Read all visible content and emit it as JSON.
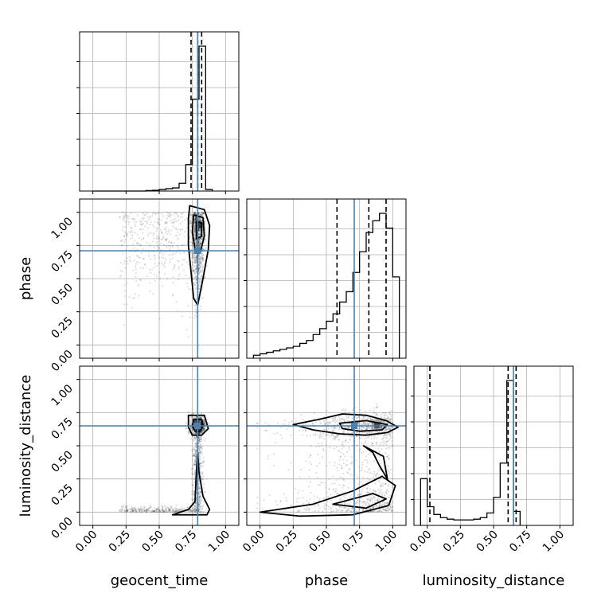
{
  "chart_data": {
    "type": "corner",
    "parameters": [
      "geocent_time",
      "phase",
      "luminosity_distance"
    ],
    "axis_range": [
      -0.1,
      1.1
    ],
    "ticks": [
      0.0,
      0.25,
      0.5,
      0.75,
      1.0
    ],
    "tick_labels": [
      "0.00",
      "0.25",
      "0.50",
      "0.75",
      "1.00"
    ],
    "grid": true,
    "injection_color": "#4682b4",
    "contour_color": "#000000",
    "truths": {
      "geocent_time": 0.79,
      "phase": 0.71,
      "luminosity_distance": 0.65
    },
    "quantile_lines": {
      "geocent_time": [
        0.74,
        0.79,
        0.82
      ],
      "phase": [
        0.58,
        0.82,
        0.95
      ],
      "luminosity_distance": [
        0.02,
        0.61,
        0.67
      ]
    },
    "marginals": {
      "geocent_time": {
        "bin_edges": [
          0.0,
          0.05,
          0.1,
          0.15,
          0.2,
          0.25,
          0.3,
          0.35,
          0.4,
          0.45,
          0.5,
          0.55,
          0.6,
          0.65,
          0.7,
          0.75,
          0.8,
          0.85,
          0.9
        ],
        "counts": [
          0,
          0,
          0,
          0,
          0,
          0,
          0,
          0,
          0.003,
          0.005,
          0.01,
          0.015,
          0.02,
          0.05,
          0.17,
          0.59,
          0.93,
          0.01
        ]
      },
      "phase": {
        "bin_edges": [
          -0.05,
          0.0,
          0.05,
          0.1,
          0.15,
          0.2,
          0.25,
          0.3,
          0.35,
          0.4,
          0.45,
          0.5,
          0.55,
          0.6,
          0.65,
          0.7,
          0.75,
          0.8,
          0.85,
          0.9,
          0.95,
          1.0,
          1.05
        ],
        "counts": [
          0.02,
          0.03,
          0.04,
          0.05,
          0.06,
          0.07,
          0.08,
          0.1,
          0.12,
          0.16,
          0.2,
          0.25,
          0.3,
          0.38,
          0.45,
          0.58,
          0.72,
          0.85,
          0.93,
          0.98,
          0.88,
          0.55
        ]
      },
      "luminosity_distance": {
        "bin_edges": [
          -0.05,
          0.0,
          0.05,
          0.1,
          0.15,
          0.2,
          0.25,
          0.3,
          0.35,
          0.4,
          0.45,
          0.5,
          0.55,
          0.6,
          0.65,
          0.7
        ],
        "counts": [
          0.3,
          0.12,
          0.07,
          0.05,
          0.04,
          0.035,
          0.035,
          0.035,
          0.04,
          0.05,
          0.08,
          0.18,
          0.4,
          0.93,
          0.09
        ]
      }
    },
    "pairs": [
      {
        "x": "geocent_time",
        "y": "phase",
        "contours": [
          [
            [
              0.73,
              1.05
            ],
            [
              0.84,
              1.02
            ],
            [
              0.88,
              0.9
            ],
            [
              0.87,
              0.72
            ],
            [
              0.83,
              0.5
            ],
            [
              0.79,
              0.3
            ],
            [
              0.76,
              0.35
            ],
            [
              0.74,
              0.55
            ],
            [
              0.72,
              0.75
            ],
            [
              0.72,
              0.95
            ]
          ],
          [
            [
              0.76,
              0.98
            ],
            [
              0.83,
              0.96
            ],
            [
              0.84,
              0.82
            ],
            [
              0.81,
              0.7
            ],
            [
              0.77,
              0.72
            ],
            [
              0.75,
              0.85
            ]
          ],
          [
            [
              0.78,
              0.93
            ],
            [
              0.82,
              0.92
            ],
            [
              0.82,
              0.82
            ],
            [
              0.78,
              0.8
            ]
          ]
        ]
      },
      {
        "x": "geocent_time",
        "y": "luminosity_distance",
        "contours": [
          [
            [
              0.72,
              0.73
            ],
            [
              0.84,
              0.73
            ],
            [
              0.87,
              0.63
            ],
            [
              0.82,
              0.58
            ],
            [
              0.75,
              0.58
            ],
            [
              0.72,
              0.64
            ]
          ],
          [
            [
              0.76,
              0.7
            ],
            [
              0.82,
              0.7
            ],
            [
              0.83,
              0.65
            ],
            [
              0.81,
              0.61
            ],
            [
              0.77,
              0.61
            ],
            [
              0.75,
              0.65
            ]
          ],
          [
            [
              0.79,
              0.45
            ],
            [
              0.8,
              0.3
            ],
            [
              0.83,
              0.12
            ],
            [
              0.88,
              0.02
            ],
            [
              0.86,
              -0.02
            ],
            [
              0.6,
              -0.02
            ],
            [
              0.72,
              0.02
            ],
            [
              0.77,
              0.08
            ],
            [
              0.78,
              0.3
            ]
          ]
        ]
      },
      {
        "x": "phase",
        "y": "luminosity_distance",
        "contours": [
          [
            [
              0.25,
              0.66
            ],
            [
              0.45,
              0.7
            ],
            [
              0.62,
              0.74
            ],
            [
              0.8,
              0.73
            ],
            [
              0.95,
              0.69
            ],
            [
              1.04,
              0.64
            ],
            [
              0.96,
              0.6
            ],
            [
              0.8,
              0.58
            ],
            [
              0.6,
              0.59
            ],
            [
              0.4,
              0.62
            ]
          ],
          [
            [
              0.6,
              0.67
            ],
            [
              0.8,
              0.69
            ],
            [
              0.96,
              0.66
            ],
            [
              0.92,
              0.62
            ],
            [
              0.75,
              0.61
            ],
            [
              0.62,
              0.63
            ]
          ],
          [
            [
              0.78,
              0.5
            ],
            [
              0.93,
              0.42
            ],
            [
              0.96,
              0.25
            ],
            [
              0.9,
              0.35
            ],
            [
              0.85,
              0.45
            ]
          ],
          [
            [
              0.0,
              0.0
            ],
            [
              0.4,
              0.06
            ],
            [
              0.7,
              0.16
            ],
            [
              0.92,
              0.27
            ],
            [
              1.02,
              0.2
            ],
            [
              0.97,
              0.05
            ],
            [
              0.7,
              -0.02
            ],
            [
              0.3,
              -0.03
            ]
          ],
          [
            [
              0.55,
              0.06
            ],
            [
              0.85,
              0.14
            ],
            [
              0.95,
              0.1
            ],
            [
              0.8,
              0.03
            ]
          ]
        ]
      }
    ]
  }
}
